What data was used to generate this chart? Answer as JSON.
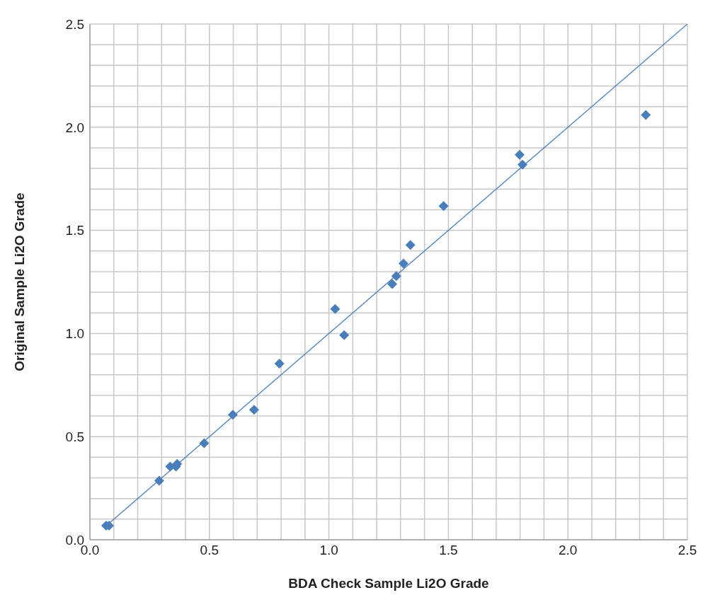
{
  "chart_data": {
    "type": "scatter",
    "xlabel": "BDA Check Sample Li2O Grade",
    "ylabel": "Original Sample Li2O Grade",
    "xlim": [
      0,
      2.5
    ],
    "ylim": [
      0,
      2.5
    ],
    "xticks": [
      {
        "value": 0,
        "label": "0.0"
      },
      {
        "value": 0.1,
        "label": null
      },
      {
        "value": 0.2,
        "label": null
      },
      {
        "value": 0.3,
        "label": null
      },
      {
        "value": 0.4,
        "label": null
      },
      {
        "value": 0.5,
        "label": "0.5"
      },
      {
        "value": 0.6,
        "label": null
      },
      {
        "value": 0.7,
        "label": null
      },
      {
        "value": 0.8,
        "label": null
      },
      {
        "value": 0.9,
        "label": null
      },
      {
        "value": 1.0,
        "label": "1.0"
      },
      {
        "value": 1.1,
        "label": null
      },
      {
        "value": 1.2,
        "label": null
      },
      {
        "value": 1.3,
        "label": null
      },
      {
        "value": 1.4,
        "label": null
      },
      {
        "value": 1.5,
        "label": "1.5"
      },
      {
        "value": 1.6,
        "label": null
      },
      {
        "value": 1.7,
        "label": null
      },
      {
        "value": 1.8,
        "label": null
      },
      {
        "value": 1.9,
        "label": null
      },
      {
        "value": 2.0,
        "label": "2.0"
      },
      {
        "value": 2.1,
        "label": null
      },
      {
        "value": 2.2,
        "label": null
      },
      {
        "value": 2.3,
        "label": null
      },
      {
        "value": 2.4,
        "label": null
      },
      {
        "value": 2.5,
        "label": "2.5"
      }
    ],
    "yticks": [
      {
        "value": 0,
        "label": "0.0"
      },
      {
        "value": 0.1,
        "label": null
      },
      {
        "value": 0.2,
        "label": null
      },
      {
        "value": 0.3,
        "label": null
      },
      {
        "value": 0.4,
        "label": null
      },
      {
        "value": 0.5,
        "label": "0.5"
      },
      {
        "value": 0.6,
        "label": null
      },
      {
        "value": 0.7,
        "label": null
      },
      {
        "value": 0.8,
        "label": null
      },
      {
        "value": 0.9,
        "label": null
      },
      {
        "value": 1.0,
        "label": "1.0"
      },
      {
        "value": 1.1,
        "label": null
      },
      {
        "value": 1.2,
        "label": null
      },
      {
        "value": 1.3,
        "label": null
      },
      {
        "value": 1.4,
        "label": null
      },
      {
        "value": 1.5,
        "label": "1.5"
      },
      {
        "value": 1.6,
        "label": null
      },
      {
        "value": 1.7,
        "label": null
      },
      {
        "value": 1.8,
        "label": null
      },
      {
        "value": 1.9,
        "label": null
      },
      {
        "value": 2.0,
        "label": "2.0"
      },
      {
        "value": 2.1,
        "label": null
      },
      {
        "value": 2.2,
        "label": null
      },
      {
        "value": 2.3,
        "label": null
      },
      {
        "value": 2.4,
        "label": null
      },
      {
        "value": 2.5,
        "label": "2.5"
      }
    ],
    "grid": true,
    "legend": false,
    "marker": "diamond",
    "series": [
      {
        "color": "#4a7ebb",
        "x": [
          0.068,
          0.08,
          0.29,
          0.336,
          0.36,
          0.365,
          0.478,
          0.598,
          0.687,
          0.793,
          1.026,
          1.064,
          1.265,
          1.282,
          1.312,
          1.341,
          1.48,
          1.798,
          1.81,
          2.326
        ],
        "values": [
          0.069,
          0.069,
          0.286,
          0.355,
          0.355,
          0.368,
          0.468,
          0.606,
          0.63,
          0.854,
          1.119,
          0.992,
          1.24,
          1.278,
          1.339,
          1.429,
          1.618,
          1.866,
          1.818,
          2.059
        ]
      },
      {
        "type": "line",
        "color": "#4a7ebb",
        "marker": "none",
        "line_style": "solid",
        "x": [
          0.08,
          2.5
        ],
        "values": [
          0.08,
          2.5
        ]
      }
    ]
  }
}
